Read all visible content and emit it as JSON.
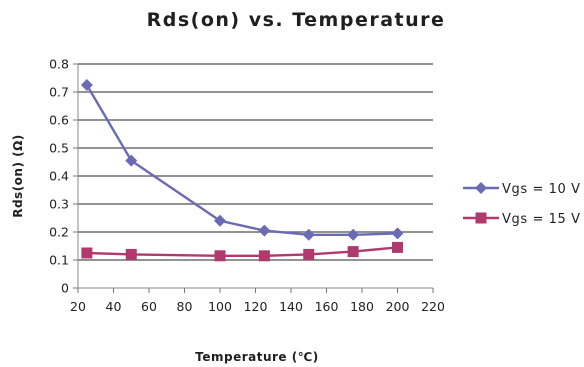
{
  "chart_data": {
    "type": "line",
    "title": "Rds(on) vs. Temperature",
    "xlabel": "Temperature (℃)",
    "ylabel": "Rds(on) (Ω)",
    "xlim": [
      20,
      220
    ],
    "ylim": [
      0,
      0.8
    ],
    "x_ticks": [
      "20",
      "40",
      "60",
      "80",
      "100",
      "120",
      "140",
      "160",
      "180",
      "200",
      "220"
    ],
    "y_ticks": [
      "0",
      "0.1",
      "0.2",
      "0.3",
      "0.4",
      "0.5",
      "0.6",
      "0.7",
      "0.8"
    ],
    "grid": "horizontal",
    "legend_position": "right",
    "series": [
      {
        "name": "Vgs = 10 V",
        "color": "#6b6bb5",
        "marker": "diamond",
        "x": [
          25,
          50,
          100,
          125,
          150,
          175,
          200
        ],
        "y": [
          0.725,
          0.455,
          0.24,
          0.205,
          0.19,
          0.19,
          0.195
        ]
      },
      {
        "name": "Vgs = 15 V",
        "color": "#b03a6e",
        "marker": "square",
        "x": [
          25,
          50,
          100,
          125,
          150,
          175,
          200
        ],
        "y": [
          0.125,
          0.12,
          0.115,
          0.115,
          0.12,
          0.13,
          0.145
        ]
      }
    ]
  }
}
